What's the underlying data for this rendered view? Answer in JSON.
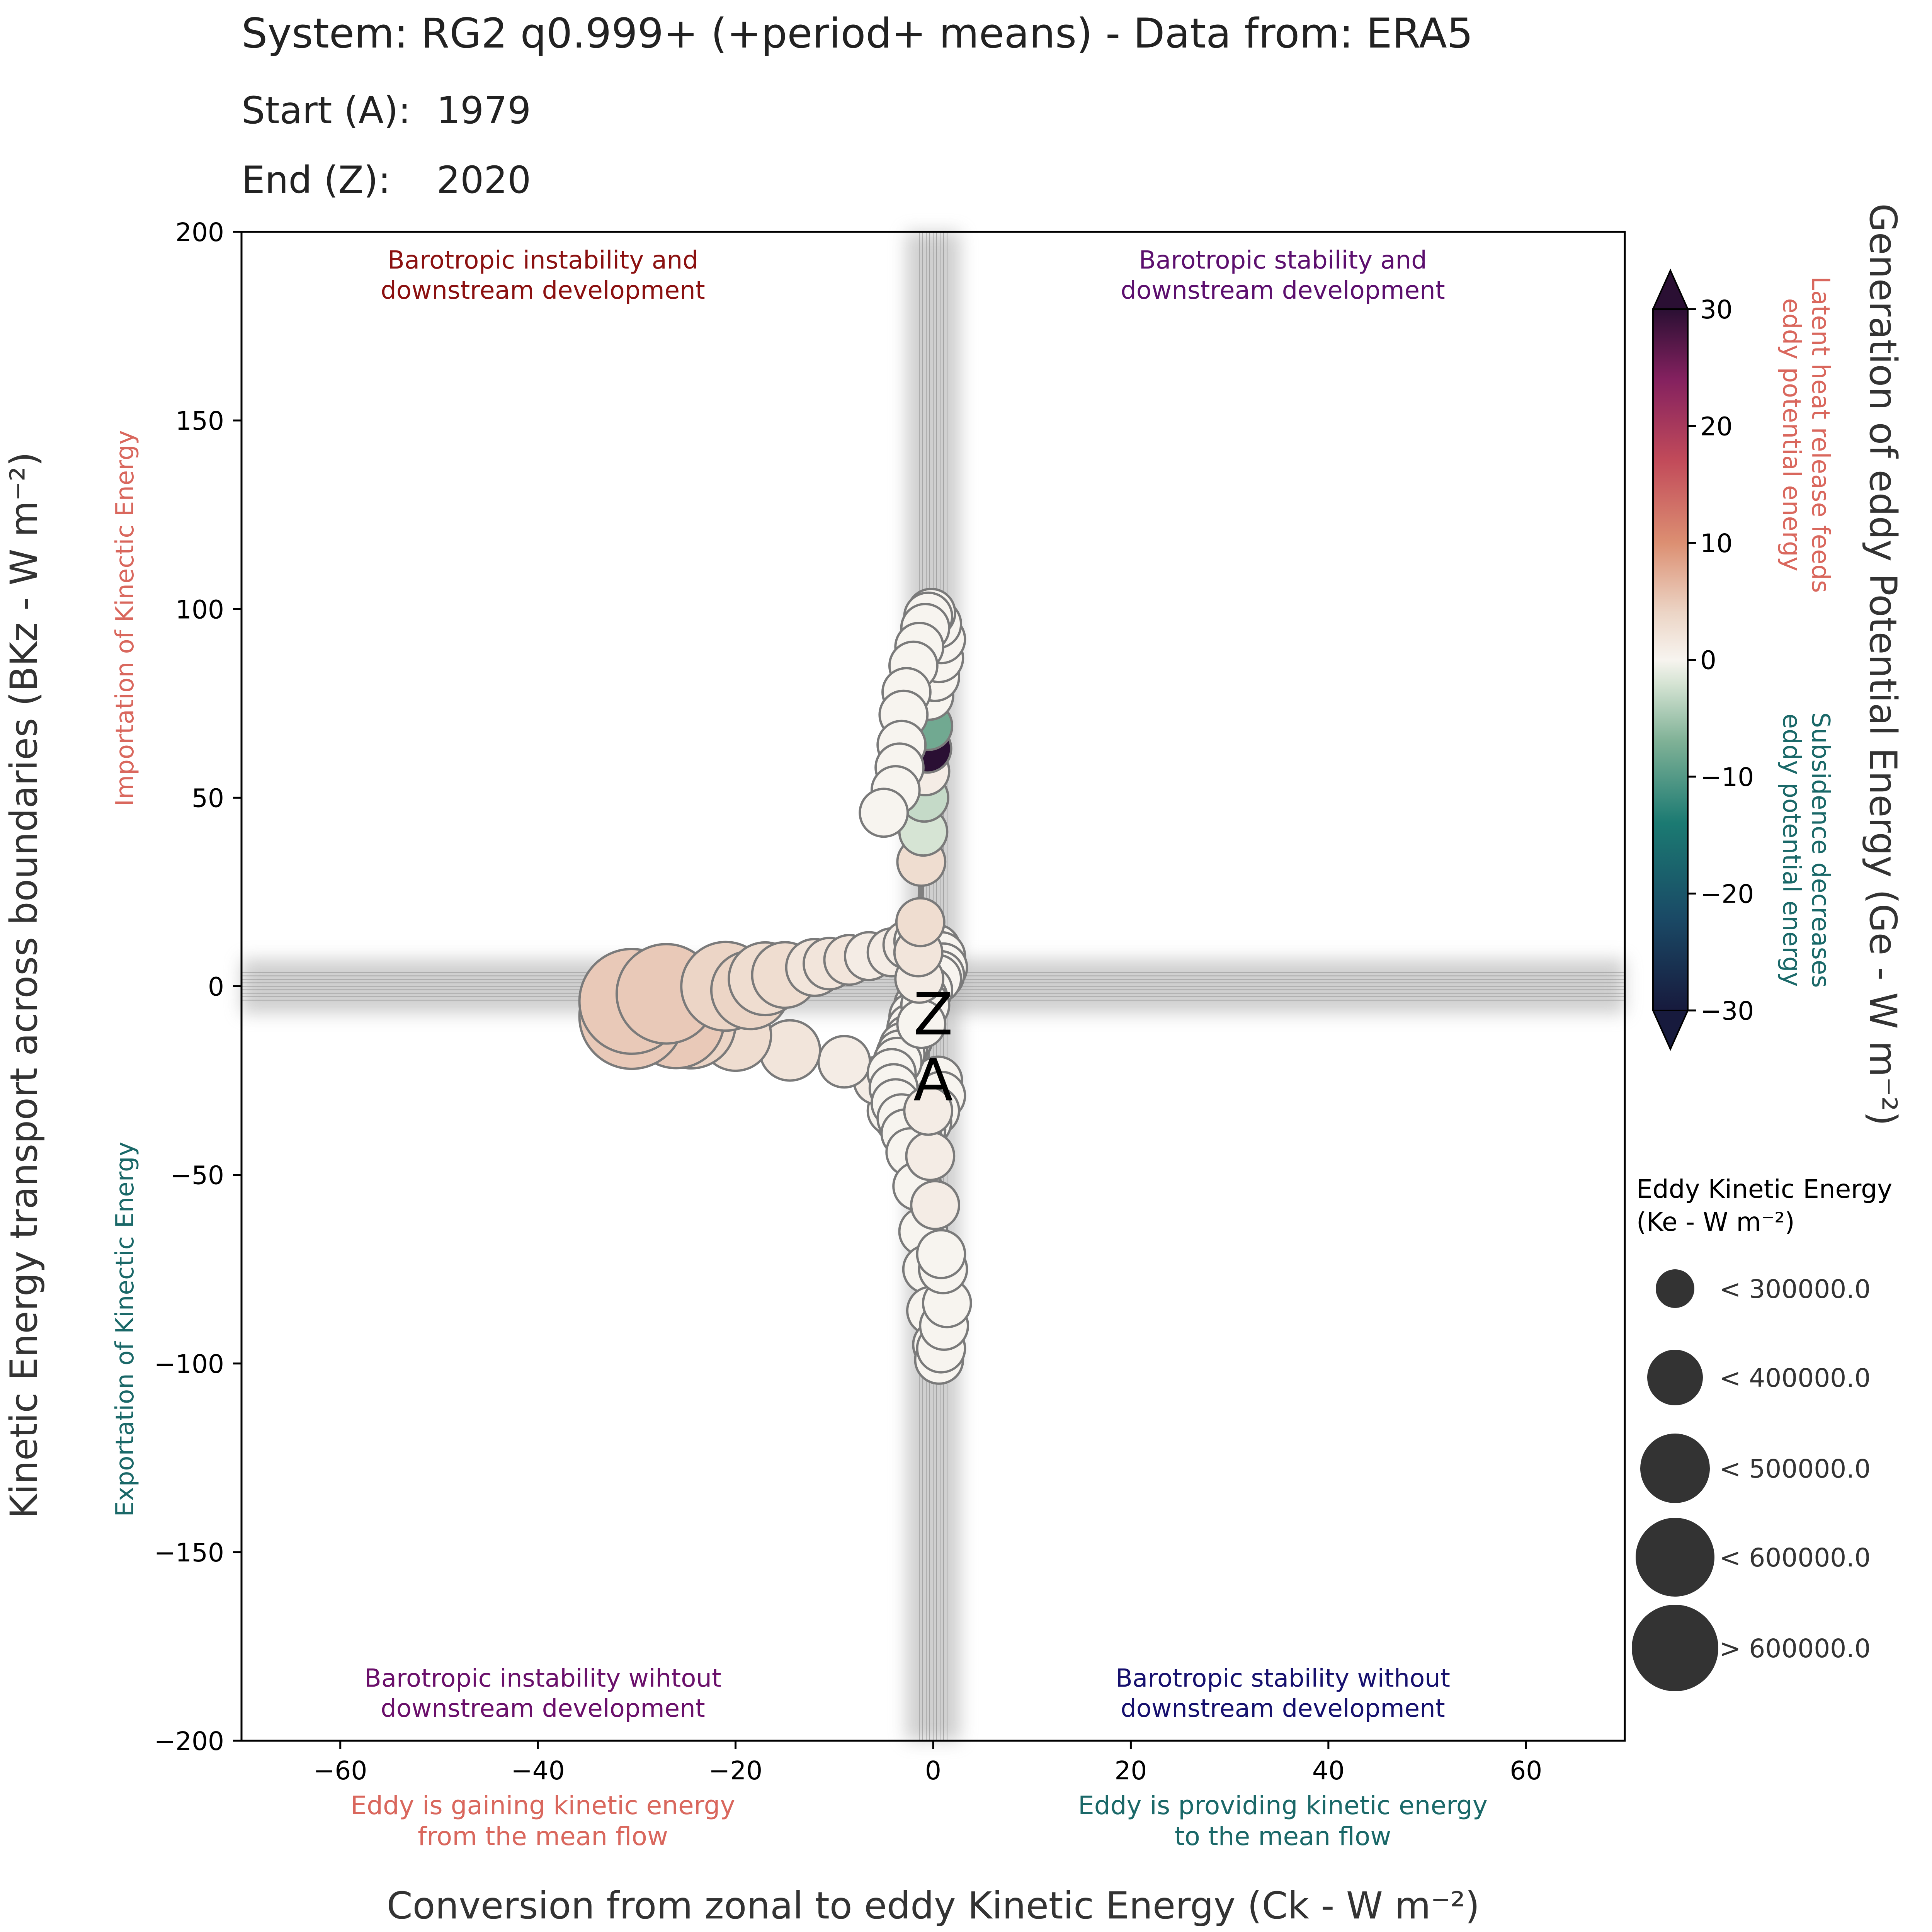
{
  "header": {
    "title": "System: RG2 q0.999+ (+period+ means) - Data from: ERA5",
    "start_label": "Start (A):",
    "start_value": "1979",
    "end_label": "End (Z):",
    "end_value": "2020"
  },
  "colors": {
    "importation": "#d9675d",
    "exportation": "#1a6868",
    "latent": "#d9675d",
    "subsidence": "#1a6868",
    "gaining": "#d9675d",
    "providing": "#1a6868",
    "q_tl": "#8b1010",
    "q_tr": "#5c0f6e",
    "q_bl": "#6a0f6a",
    "q_br": "#16106e",
    "path": "#808080",
    "marker_edge": "#7a7a7a",
    "legend_fill": "#333333"
  },
  "chart_data": {
    "type": "scatter",
    "title": "System: RG2 q0.999+ (+period+ means) - Data from: ERA5",
    "xlabel": "Conversion from zonal to eddy Kinetic Energy (Ck - W m⁻²)",
    "ylabel": "Kinetic Energy transport across boundaries (BKz - W m⁻²)",
    "xlim": [
      -70,
      70
    ],
    "ylim": [
      -200,
      200
    ],
    "xticks": [
      -60,
      -40,
      -20,
      0,
      20,
      40,
      60
    ],
    "yticks": [
      200,
      150,
      100,
      50,
      0,
      -50,
      -100,
      -150,
      -200
    ],
    "tick_labels_x": [
      "−60",
      "−40",
      "−20",
      "0",
      "20",
      "40",
      "60"
    ],
    "tick_labels_y": [
      "200",
      "150",
      "100",
      "50",
      "0",
      "−50",
      "−100",
      "−150",
      "−200"
    ],
    "grid": false,
    "zero_lines": true,
    "left_annotations": {
      "upper": "Importation of Kinectic Energy",
      "lower": "Exportation of Kinectic Energy"
    },
    "bottom_annotations": {
      "left": [
        "Eddy is gaining kinetic energy",
        "from the mean flow"
      ],
      "right": [
        "Eddy is providing kinetic energy",
        "to the mean flow"
      ]
    },
    "quadrant_labels": {
      "top_left": [
        "Barotropic instability and",
        "downstream development"
      ],
      "top_right": [
        "Barotropic stability and",
        "downstream development"
      ],
      "bottom_left": [
        "Barotropic instability wihtout",
        "downstream development"
      ],
      "bottom_right": [
        "Barotropic stability without",
        "downstream development"
      ]
    },
    "start_marker": "A",
    "end_marker": "Z",
    "colorbar": {
      "label": "Generation of eddy Potential Energy (Ge - W m⁻²)",
      "min": -30,
      "max": 30,
      "ticks": [
        30,
        20,
        10,
        0,
        -10,
        -20,
        -30
      ],
      "tick_labels": [
        "30",
        "20",
        "10",
        "0",
        "−10",
        "−20",
        "−30"
      ],
      "extend": "both",
      "colormap_stops": [
        {
          "v": -30,
          "color": "#171a3d"
        },
        {
          "v": -22,
          "color": "#1a4a66"
        },
        {
          "v": -14,
          "color": "#1b7a72"
        },
        {
          "v": -7,
          "color": "#7fb196"
        },
        {
          "v": -2,
          "color": "#d6e4d4"
        },
        {
          "v": 0,
          "color": "#f7f4ef"
        },
        {
          "v": 4,
          "color": "#ecd5c6"
        },
        {
          "v": 10,
          "color": "#dc8f72"
        },
        {
          "v": 17,
          "color": "#c24b5a"
        },
        {
          "v": 24,
          "color": "#84215f"
        },
        {
          "v": 30,
          "color": "#2a0f33"
        }
      ],
      "annotation_pos": [
        "Latent heat release feeds",
        "eddy potential energy"
      ],
      "annotation_neg": [
        "Subsidence decreases",
        "eddy potential energy"
      ]
    },
    "size_legend": {
      "title": "Eddy Kinetic Energy",
      "subtitle": "(Ke - W m⁻²)",
      "entries": [
        {
          "label": "< 300000.0",
          "ke": 300000
        },
        {
          "label": "< 400000.0",
          "ke": 400000
        },
        {
          "label": "< 500000.0",
          "ke": 500000
        },
        {
          "label": "< 600000.0",
          "ke": 600000
        },
        {
          "label": "> 600000.0",
          "ke": 700000
        }
      ]
    },
    "series": [
      {
        "x": [
          0.5,
          0.8,
          0.2,
          -0.6,
          -1.2,
          -1.5,
          -1.9,
          -2.4,
          -3.0,
          -3.5,
          -4.2,
          -5.6,
          -9.0,
          -14.5,
          -20.0,
          -24.5,
          -26.0,
          -30.5,
          -30.5,
          -27.0,
          -21.0,
          -18.5,
          -17.0,
          -15.0,
          -12.0,
          -10.5,
          -8.5,
          -6.5,
          -4.2,
          -2.6,
          -1.5,
          -0.8,
          0.3,
          0.8,
          1.0,
          0.7,
          0.4,
          -0.5,
          -1.0,
          -1.5,
          -2.0,
          -2.2,
          -2.5,
          -3.0,
          -3.3,
          -3.6,
          -4.2,
          -4.0,
          -3.8,
          -3.2,
          -2.8,
          -2.3,
          -1.6,
          -1.0,
          -0.6,
          -0.2,
          0.4,
          0.6,
          0.8,
          1.1,
          1.4,
          1.0,
          0.8,
          0.2,
          -0.3,
          -0.5,
          -0.8,
          -1.2,
          -1.4,
          -1.5,
          -1.3,
          -1.2,
          -1.0,
          -0.9,
          -0.8,
          -0.6,
          -0.5,
          -0.4,
          0.2,
          0.6,
          0.8,
          0.4,
          -0.2,
          -0.5,
          -0.8,
          -1.4,
          -2.0,
          -2.7,
          -3.0,
          -3.2,
          -3.4,
          -3.8,
          -5.0
        ],
        "y": [
          -25,
          -29,
          -33,
          -36,
          -38,
          -41,
          -42,
          -40,
          -37,
          -35,
          -33,
          -25,
          -20,
          -17,
          -13,
          -10,
          -9,
          -8,
          -4,
          -2,
          0,
          -1,
          2,
          3,
          5,
          6,
          7,
          8,
          9,
          11,
          12,
          12,
          10,
          8,
          5,
          3,
          2,
          -1,
          -3,
          -5,
          -8,
          -11,
          -14,
          -16,
          -18,
          -20,
          -23,
          -27,
          -31,
          -35,
          -39,
          -44,
          -53,
          -65,
          -75,
          -86,
          -95,
          -99,
          -96,
          -90,
          -84,
          -75,
          -71,
          -58,
          -45,
          -33,
          -5,
          -10,
          2,
          9,
          17,
          33,
          41,
          50,
          57,
          63,
          69,
          77,
          82,
          87,
          92,
          96,
          99,
          98,
          95,
          90,
          85,
          78,
          72,
          64,
          58,
          52,
          46
        ],
        "ke": [
          330000,
          330000,
          330000,
          330000,
          330000,
          330000,
          330000,
          330000,
          330000,
          330000,
          330000,
          330000,
          350000,
          400000,
          460000,
          560000,
          600000,
          650000,
          650000,
          620000,
          560000,
          500000,
          470000,
          430000,
          380000,
          350000,
          340000,
          330000,
          330000,
          330000,
          330000,
          330000,
          330000,
          330000,
          330000,
          330000,
          330000,
          330000,
          330000,
          330000,
          330000,
          330000,
          330000,
          330000,
          330000,
          330000,
          330000,
          330000,
          330000,
          330000,
          330000,
          330000,
          330000,
          330000,
          330000,
          330000,
          330000,
          330000,
          330000,
          330000,
          330000,
          330000,
          330000,
          330000,
          330000,
          330000,
          330000,
          330000,
          330000,
          330000,
          330000,
          330000,
          330000,
          330000,
          330000,
          330000,
          330000,
          330000,
          330000,
          330000,
          330000,
          330000,
          330000,
          330000,
          330000,
          330000,
          330000,
          330000,
          330000,
          330000,
          330000,
          330000,
          330000
        ],
        "ge": [
          0,
          0,
          0,
          0,
          0,
          0,
          0,
          0,
          0,
          0,
          0,
          1,
          1,
          2,
          3,
          4,
          5,
          5,
          5,
          5,
          4,
          4,
          3,
          3,
          2,
          2,
          2,
          1,
          1,
          1,
          0,
          0,
          0,
          0,
          0,
          0,
          0,
          0,
          0,
          0,
          0,
          0,
          0,
          0,
          0,
          0,
          0,
          0,
          0,
          0,
          0,
          0,
          0,
          0,
          0,
          0,
          0,
          0,
          0,
          0,
          0,
          0,
          0,
          1,
          1,
          1,
          0,
          0,
          1,
          2,
          3,
          3,
          -2,
          -3,
          1,
          30,
          -8,
          0,
          0,
          0,
          0,
          0,
          0,
          0,
          0,
          0,
          0,
          0,
          0,
          0,
          0,
          0,
          0
        ]
      }
    ]
  }
}
